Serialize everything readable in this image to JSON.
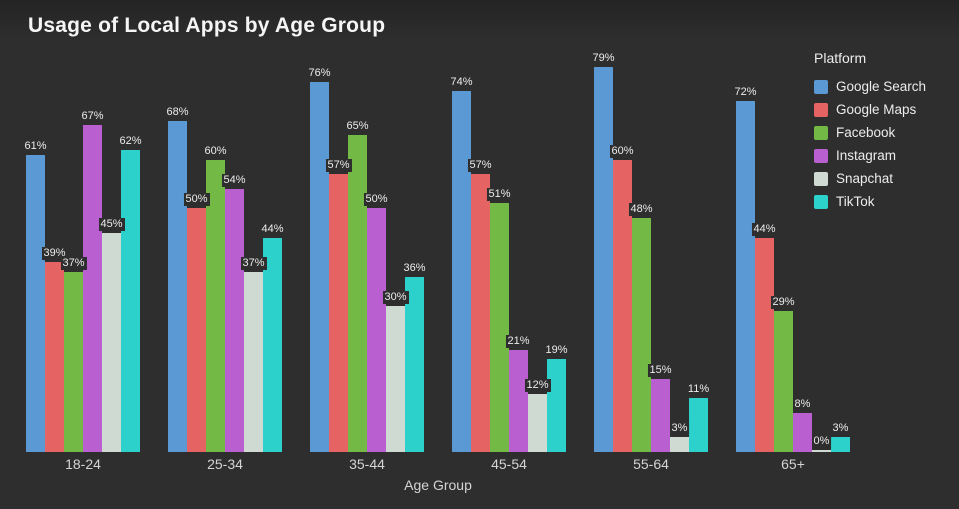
{
  "chart_data": {
    "type": "bar",
    "title": "Usage of Local Apps by Age Group",
    "xlabel": "Age Group",
    "legend_title": "Platform",
    "legend_position": "top-right",
    "grid": false,
    "background": "#2e2e2e",
    "value_suffix": "%",
    "ylim": [
      0,
      80
    ],
    "categories": [
      "18-24",
      "25-34",
      "35-44",
      "45-54",
      "55-64",
      "65+"
    ],
    "series": [
      {
        "name": "Google Search",
        "color": "#5b99d5",
        "values": [
          61,
          68,
          76,
          74,
          79,
          72
        ]
      },
      {
        "name": "Google Maps",
        "color": "#e56363",
        "values": [
          39,
          50,
          57,
          57,
          60,
          44
        ]
      },
      {
        "name": "Facebook",
        "color": "#72b946",
        "values": [
          37,
          60,
          65,
          51,
          48,
          29
        ]
      },
      {
        "name": "Instagram",
        "color": "#ba5fd0",
        "values": [
          67,
          54,
          50,
          21,
          15,
          8
        ]
      },
      {
        "name": "Snapchat",
        "color": "#cfdad2",
        "values": [
          45,
          37,
          30,
          12,
          3,
          0
        ]
      },
      {
        "name": "TikTok",
        "color": "#2dd1cb",
        "values": [
          62,
          44,
          36,
          19,
          11,
          3
        ]
      }
    ]
  }
}
